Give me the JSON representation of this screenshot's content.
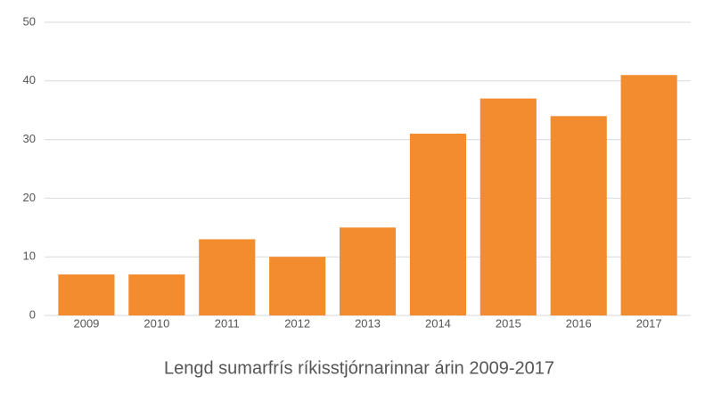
{
  "chart_data": {
    "type": "bar",
    "title": "Lengd sumarfrís ríkisstjórnarinnar árin 2009-2017",
    "categories": [
      "2009",
      "2010",
      "2011",
      "2012",
      "2013",
      "2014",
      "2015",
      "2016",
      "2017"
    ],
    "values": [
      7,
      7,
      13,
      10,
      15,
      31,
      37,
      34,
      41
    ],
    "color": "#f28c2e",
    "ylim": [
      0,
      50
    ],
    "yticks": [
      0,
      10,
      20,
      30,
      40,
      50
    ],
    "grid": true
  }
}
